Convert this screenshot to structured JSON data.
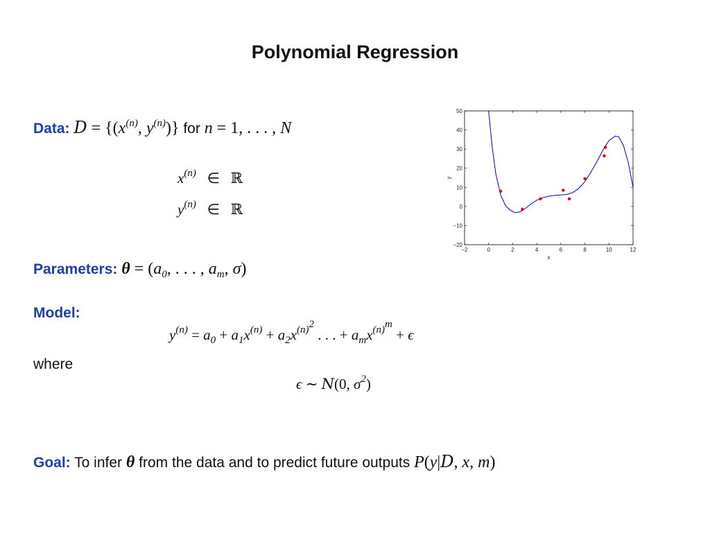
{
  "slide": {
    "title": "Polynomial Regression",
    "data_label": "Data:",
    "data_for_word": "for",
    "params_label": "Parameters:",
    "model_label": "Model:",
    "where_word": "where",
    "goal_label": "Goal:",
    "goal_text_1": "To infer",
    "goal_text_2": "from the data and to predict future outputs"
  },
  "colors": {
    "keyword": "#1c3fae",
    "curve": "#0000c8",
    "points": "#e00000"
  },
  "chart_data": {
    "type": "scatter",
    "xlabel": "x",
    "ylabel": "y",
    "xlim": [
      -2,
      12
    ],
    "ylim": [
      -20,
      50
    ],
    "xticks": [
      -2,
      0,
      2,
      4,
      6,
      8,
      10,
      12
    ],
    "yticks": [
      -20,
      -10,
      0,
      10,
      20,
      30,
      40,
      50
    ],
    "tick_labels_x": [
      "−2",
      "0",
      "2",
      "4",
      "6",
      "8",
      "10",
      "12"
    ],
    "tick_labels_y": [
      "−20",
      "−10",
      "0",
      "10",
      "20",
      "30",
      "40",
      "50"
    ],
    "points": [
      {
        "x": 1.0,
        "y": 8
      },
      {
        "x": 2.8,
        "y": -1.5
      },
      {
        "x": 4.3,
        "y": 4
      },
      {
        "x": 6.2,
        "y": 8.5
      },
      {
        "x": 6.7,
        "y": 4
      },
      {
        "x": 8.0,
        "y": 14.5
      },
      {
        "x": 9.6,
        "y": 26.5
      },
      {
        "x": 9.7,
        "y": 31
      }
    ],
    "curve": [
      [
        0.0,
        50
      ],
      [
        0.3,
        31
      ],
      [
        0.6,
        17
      ],
      [
        1.0,
        6
      ],
      [
        1.4,
        0.5
      ],
      [
        1.8,
        -2
      ],
      [
        2.2,
        -3.2
      ],
      [
        2.6,
        -2.8
      ],
      [
        3.0,
        -1.3
      ],
      [
        3.5,
        1.2
      ],
      [
        4.0,
        3.3
      ],
      [
        4.5,
        4.6
      ],
      [
        5.0,
        5.4
      ],
      [
        5.5,
        5.8
      ],
      [
        6.0,
        6.0
      ],
      [
        6.5,
        6.3
      ],
      [
        7.0,
        7.3
      ],
      [
        7.5,
        9.5
      ],
      [
        8.0,
        13.0
      ],
      [
        8.5,
        18.0
      ],
      [
        9.0,
        23.5
      ],
      [
        9.5,
        29.5
      ],
      [
        10.0,
        34.5
      ],
      [
        10.5,
        36.8
      ],
      [
        10.8,
        36.5
      ],
      [
        11.2,
        32.0
      ],
      [
        11.6,
        23.0
      ],
      [
        12.0,
        10.0
      ]
    ]
  }
}
